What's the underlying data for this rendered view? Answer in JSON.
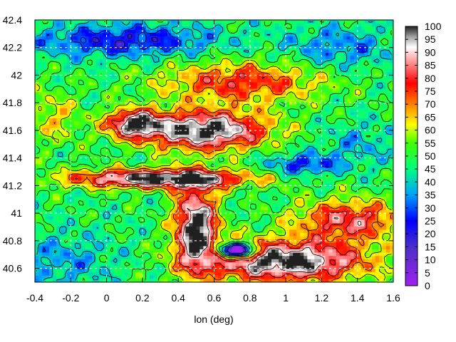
{
  "chart_data": {
    "type": "heatmap",
    "title": "",
    "xlabel": "lon (deg)",
    "ylabel": "",
    "xlim": [
      -0.4,
      1.6
    ],
    "ylim": [
      40.5,
      42.4
    ],
    "x_ticks": [
      "-0.4",
      "-0.2",
      "0",
      "0.2",
      "0.4",
      "0.6",
      "0.8",
      "1",
      "1.2",
      "1.4",
      "1.6"
    ],
    "y_ticks": [
      "40.6",
      "40.8",
      "41",
      "41.2",
      "41.4",
      "41.6",
      "41.8",
      "42",
      "42.2",
      "42.4"
    ],
    "colorbar": {
      "range": [
        0,
        100
      ],
      "ticks": [
        "0",
        "5",
        "10",
        "15",
        "20",
        "25",
        "30",
        "35",
        "40",
        "45",
        "50",
        "55",
        "60",
        "65",
        "70",
        "75",
        "80",
        "85",
        "90",
        "95",
        "100"
      ],
      "stops": [
        {
          "v": 0,
          "color": "#a020f0"
        },
        {
          "v": 15,
          "color": "#4b2fc8"
        },
        {
          "v": 25,
          "color": "#0000ff"
        },
        {
          "v": 35,
          "color": "#00a0ff"
        },
        {
          "v": 45,
          "color": "#00ff80"
        },
        {
          "v": 55,
          "color": "#40ff00"
        },
        {
          "v": 62,
          "color": "#ffff00"
        },
        {
          "v": 70,
          "color": "#ff8000"
        },
        {
          "v": 78,
          "color": "#ff0000"
        },
        {
          "v": 85,
          "color": "#ff8080"
        },
        {
          "v": 92,
          "color": "#ffffff"
        },
        {
          "v": 96,
          "color": "#a0a0a0"
        },
        {
          "v": 100,
          "color": "#202020"
        }
      ]
    },
    "grid": true,
    "field": {
      "base": 48,
      "features": [
        {
          "x": 0.3,
          "y": 41.25,
          "sx": 0.5,
          "sy": 0.07,
          "a": 55
        },
        {
          "x": 0.55,
          "y": 41.6,
          "sx": 0.35,
          "sy": 0.14,
          "a": 55
        },
        {
          "x": 0.15,
          "y": 41.65,
          "sx": 0.15,
          "sy": 0.1,
          "a": 45
        },
        {
          "x": 0.5,
          "y": 40.9,
          "sx": 0.12,
          "sy": 0.3,
          "a": 55
        },
        {
          "x": 1.0,
          "y": 40.65,
          "sx": 0.45,
          "sy": 0.15,
          "a": 55
        },
        {
          "x": 1.35,
          "y": 40.95,
          "sx": 0.3,
          "sy": 0.15,
          "a": 35
        },
        {
          "x": 0.75,
          "y": 41.95,
          "sx": 0.45,
          "sy": 0.15,
          "a": 30
        },
        {
          "x": 0.1,
          "y": 42.25,
          "sx": 0.5,
          "sy": 0.12,
          "a": -25
        },
        {
          "x": 1.3,
          "y": 42.2,
          "sx": 0.3,
          "sy": 0.15,
          "a": -15
        },
        {
          "x": 1.1,
          "y": 41.35,
          "sx": 0.2,
          "sy": 0.08,
          "a": -22
        },
        {
          "x": -0.25,
          "y": 40.65,
          "sx": 0.3,
          "sy": 0.2,
          "a": -12
        },
        {
          "x": 1.4,
          "y": 41.5,
          "sx": 0.2,
          "sy": 0.15,
          "a": -10
        },
        {
          "x": -0.3,
          "y": 41.7,
          "sx": 0.15,
          "sy": 0.2,
          "a": 15
        },
        {
          "x": 0.72,
          "y": 40.73,
          "sx": 0.1,
          "sy": 0.05,
          "a": -80
        }
      ]
    }
  }
}
